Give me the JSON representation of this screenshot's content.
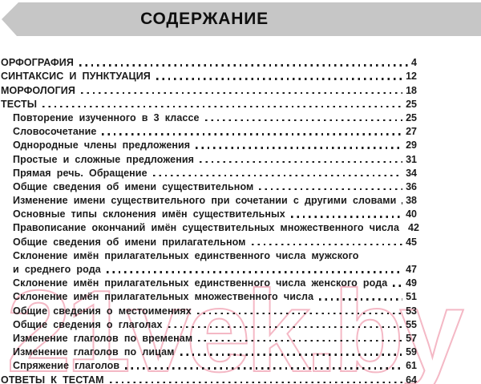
{
  "header": {
    "title": "СОДЕРЖАНИЕ"
  },
  "toc": {
    "entries": [
      {
        "label": "ОРФОГРАФИЯ",
        "page": "4",
        "level": 0
      },
      {
        "label": "СИНТАКСИС И ПУНКТУАЦИЯ",
        "page": "12",
        "level": 0
      },
      {
        "label": "МОРФОЛОГИЯ",
        "page": "18",
        "level": 0
      },
      {
        "label": "ТЕСТЫ",
        "page": "25",
        "level": 0
      },
      {
        "label": "Повторение изученного в 3 классе",
        "page": "25",
        "level": 1
      },
      {
        "label": "Словосочетание",
        "page": "27",
        "level": 1
      },
      {
        "label": "Однородные члены предложения",
        "page": "29",
        "level": 1
      },
      {
        "label": "Простые и сложные предложения",
        "page": "31",
        "level": 1
      },
      {
        "label": "Прямая речь. Обращение",
        "page": "34",
        "level": 1
      },
      {
        "label": "Общие сведения об имени существительном",
        "page": "36",
        "level": 1
      },
      {
        "label": "Изменение имени существительного при сочетании с другими словами",
        "page": "38",
        "level": 1
      },
      {
        "label": "Основные типы склонения имён существительных",
        "page": "40",
        "level": 1
      },
      {
        "label": "Правописание окончаний имён существительных множественного числа",
        "page": "42",
        "level": 1
      },
      {
        "label": "Общие сведения об имени прилагательном",
        "page": "45",
        "level": 1
      },
      {
        "label": "Склонение имён прилагательных единственного числа мужского",
        "page": "",
        "level": 1
      },
      {
        "label": "и среднего рода",
        "page": "47",
        "level": 1
      },
      {
        "label": "Склонение имён прилагательных единственного числа женского рода",
        "page": "49",
        "level": 1
      },
      {
        "label": "Склонение имён прилагательных множественного числа",
        "page": "51",
        "level": 1
      },
      {
        "label": "Общие сведения о местоимениях",
        "page": "53",
        "level": 1
      },
      {
        "label": "Общие сведения о глаголах",
        "page": "55",
        "level": 1
      },
      {
        "label": "Изменение глаголов по временам",
        "page": "57",
        "level": 1
      },
      {
        "label": "Изменение глаголов по лицам",
        "page": "59",
        "level": 1
      },
      {
        "label": "Спряжение глаголов",
        "page": "61",
        "level": 1
      },
      {
        "label": "ОТВЕТЫ К ТЕСТАМ",
        "page": "64",
        "level": 0
      }
    ]
  },
  "watermark": {
    "text": "21vek.by"
  },
  "colors": {
    "banner": "#c6c6c6",
    "text": "#1b1b1b",
    "dots": "#1f1f1f",
    "watermark": "#f4b8c5"
  }
}
